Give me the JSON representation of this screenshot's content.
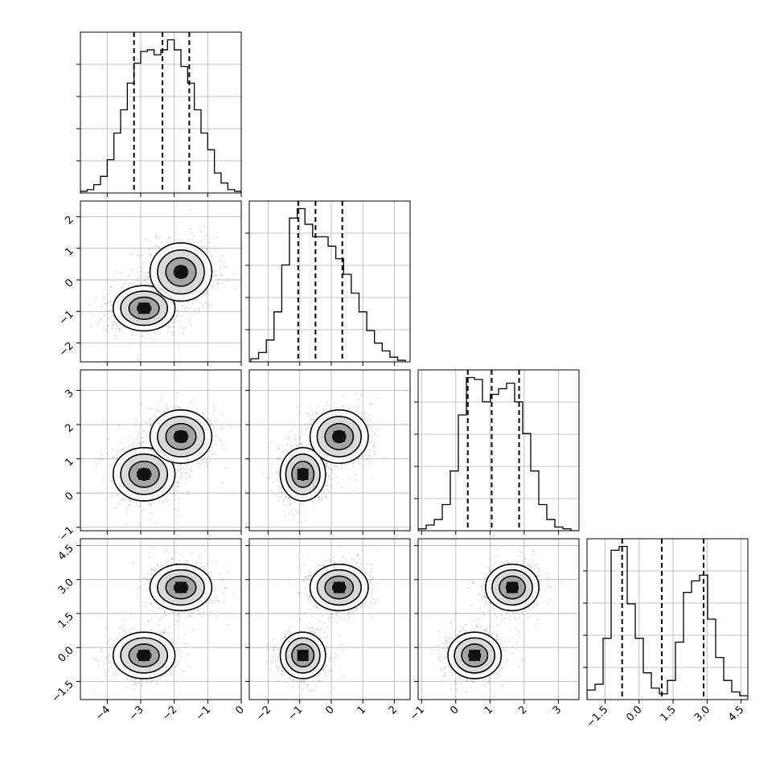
{
  "chart_data": {
    "type": "corner",
    "title": "",
    "parameters": [
      {
        "axis_range": [
          -4.8,
          0.0
        ],
        "ticks": [
          {
            "v": -4,
            "label": "−4"
          },
          {
            "v": -3,
            "label": "−3"
          },
          {
            "v": -2,
            "label": "−2"
          },
          {
            "v": -1,
            "label": "−1"
          },
          {
            "v": 0,
            "label": "0"
          }
        ],
        "quantiles": [
          -3.2,
          -2.35,
          -1.55
        ]
      },
      {
        "axis_range": [
          -2.6,
          2.5
        ],
        "ticks": [
          {
            "v": -2,
            "label": "−2"
          },
          {
            "v": -1,
            "label": "−1"
          },
          {
            "v": 0,
            "label": "0"
          },
          {
            "v": 1,
            "label": "1"
          },
          {
            "v": 2,
            "label": "2"
          }
        ],
        "quantiles": [
          -1.05,
          -0.5,
          0.35
        ]
      },
      {
        "axis_range": [
          -1.1,
          3.6
        ],
        "ticks": [
          {
            "v": -1,
            "label": "−1"
          },
          {
            "v": 0,
            "label": "0"
          },
          {
            "v": 1,
            "label": "1"
          },
          {
            "v": 2,
            "label": "2"
          },
          {
            "v": 3,
            "label": "3"
          }
        ],
        "quantiles": [
          0.35,
          1.05,
          1.85
        ]
      },
      {
        "axis_range": [
          -2.3,
          4.8
        ],
        "ticks": [
          {
            "v": -1.5,
            "label": "−1.5"
          },
          {
            "v": 0.0,
            "label": "0.0"
          },
          {
            "v": 1.5,
            "label": "1.5"
          },
          {
            "v": 3.0,
            "label": "3.0"
          },
          {
            "v": 4.5,
            "label": "4.5"
          }
        ],
        "quantiles": [
          -0.75,
          1.0,
          2.85
        ]
      }
    ],
    "histograms": [
      {
        "param": 0,
        "bins": [
          -4.8,
          0.0
        ],
        "counts": [
          1,
          2,
          5,
          10,
          20,
          36,
          50,
          66,
          78,
          85,
          86,
          83,
          86,
          92,
          86,
          76,
          66,
          50,
          36,
          26,
          12,
          6,
          2,
          1
        ]
      },
      {
        "param": 1,
        "bins": [
          -2.55,
          2.35
        ],
        "counts": [
          2,
          6,
          14,
          32,
          62,
          92,
          98,
          88,
          80,
          80,
          74,
          66,
          56,
          44,
          32,
          20,
          12,
          7,
          3,
          1
        ]
      },
      {
        "param": 2,
        "bins": [
          -1.1,
          3.6
        ],
        "counts": [
          1,
          3,
          6,
          14,
          32,
          62,
          82,
          81,
          69,
          73,
          76,
          79,
          69,
          52,
          32,
          14,
          6,
          2,
          1,
          0
        ]
      },
      {
        "param": 3,
        "bins": [
          -2.3,
          4.8
        ],
        "counts": [
          5,
          8,
          32,
          78,
          80,
          50,
          32,
          14,
          6,
          3,
          10,
          30,
          56,
          62,
          65,
          42,
          22,
          10,
          4,
          2
        ]
      }
    ],
    "modes": [
      {
        "center": [
          -2.9,
          -0.9,
          0.55,
          -0.35
        ],
        "sd": [
          0.45,
          0.35,
          0.38,
          0.5
        ],
        "weight": 0.5
      },
      {
        "center": [
          -1.8,
          0.25,
          1.65,
          2.65
        ],
        "sd": [
          0.45,
          0.45,
          0.38,
          0.5
        ],
        "weight": 0.5
      }
    ],
    "grid": true
  }
}
